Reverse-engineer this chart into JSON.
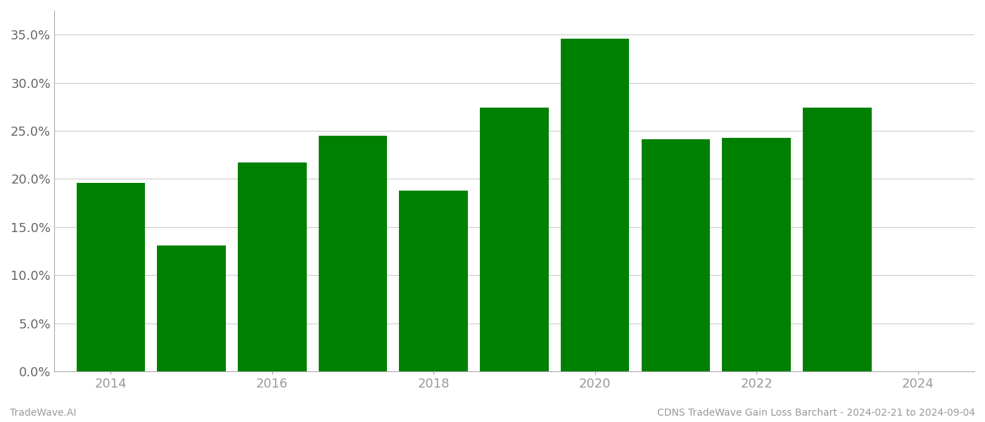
{
  "years": [
    2014,
    2015,
    2016,
    2017,
    2018,
    2019,
    2020,
    2021,
    2022,
    2023
  ],
  "values": [
    0.196,
    0.131,
    0.217,
    0.245,
    0.188,
    0.274,
    0.346,
    0.241,
    0.243,
    0.274
  ],
  "bar_color": "#008000",
  "background_color": "#ffffff",
  "grid_color": "#cccccc",
  "ylim": [
    0,
    0.375
  ],
  "yticks": [
    0.0,
    0.05,
    0.1,
    0.15,
    0.2,
    0.25,
    0.3,
    0.35
  ],
  "xticks": [
    2014,
    2016,
    2018,
    2020,
    2022,
    2024
  ],
  "xlabel": "",
  "ylabel": "",
  "footer_left": "TradeWave.AI",
  "footer_right": "CDNS TradeWave Gain Loss Barchart - 2024-02-21 to 2024-09-04",
  "footer_fontsize": 10,
  "tick_fontsize": 13,
  "bar_width": 0.85,
  "xlim": [
    2013.3,
    2024.7
  ],
  "left_spine_color": "#aaaaaa",
  "spine_bottom_color": "#aaaaaa"
}
